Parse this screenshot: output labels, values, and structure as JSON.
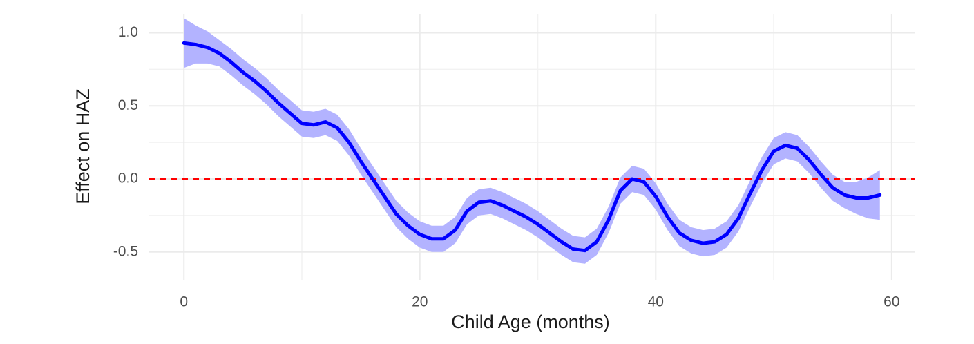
{
  "chart_data": {
    "type": "line",
    "x_label": "Child Age (months)",
    "y_label": "Effect on HAZ",
    "x": [
      0,
      1,
      2,
      3,
      4,
      5,
      6,
      7,
      8,
      9,
      10,
      11,
      12,
      13,
      14,
      15,
      16,
      17,
      18,
      19,
      20,
      21,
      22,
      23,
      24,
      25,
      26,
      27,
      28,
      29,
      30,
      31,
      32,
      33,
      34,
      35,
      36,
      37,
      38,
      39,
      40,
      41,
      42,
      43,
      44,
      45,
      46,
      47,
      48,
      49,
      50,
      51,
      52,
      53,
      54,
      55,
      56,
      57,
      58,
      59
    ],
    "series": [
      {
        "color": "#0000ff",
        "band_color": "#b3b3ff",
        "values": [
          0.93,
          0.92,
          0.9,
          0.86,
          0.8,
          0.73,
          0.67,
          0.6,
          0.52,
          0.45,
          0.38,
          0.37,
          0.39,
          0.35,
          0.25,
          0.12,
          0.0,
          -0.12,
          -0.24,
          -0.32,
          -0.38,
          -0.41,
          -0.41,
          -0.35,
          -0.22,
          -0.16,
          -0.15,
          -0.18,
          -0.22,
          -0.26,
          -0.31,
          -0.37,
          -0.43,
          -0.48,
          -0.49,
          -0.43,
          -0.28,
          -0.08,
          0.0,
          -0.02,
          -0.12,
          -0.26,
          -0.37,
          -0.42,
          -0.44,
          -0.43,
          -0.38,
          -0.27,
          -0.1,
          0.06,
          0.19,
          0.23,
          0.21,
          0.13,
          0.03,
          -0.06,
          -0.11,
          -0.13,
          -0.13,
          -0.11
        ],
        "lower": [
          0.76,
          0.79,
          0.79,
          0.77,
          0.71,
          0.64,
          0.58,
          0.51,
          0.43,
          0.36,
          0.29,
          0.28,
          0.3,
          0.26,
          0.16,
          0.03,
          -0.09,
          -0.21,
          -0.33,
          -0.41,
          -0.47,
          -0.5,
          -0.5,
          -0.44,
          -0.31,
          -0.25,
          -0.24,
          -0.27,
          -0.31,
          -0.35,
          -0.4,
          -0.46,
          -0.52,
          -0.57,
          -0.58,
          -0.52,
          -0.37,
          -0.17,
          -0.09,
          -0.11,
          -0.21,
          -0.35,
          -0.46,
          -0.51,
          -0.53,
          -0.52,
          -0.47,
          -0.36,
          -0.19,
          -0.03,
          0.1,
          0.14,
          0.12,
          0.04,
          -0.06,
          -0.15,
          -0.2,
          -0.24,
          -0.27,
          -0.28
        ],
        "upper": [
          1.1,
          1.05,
          1.01,
          0.95,
          0.89,
          0.82,
          0.76,
          0.69,
          0.61,
          0.54,
          0.47,
          0.46,
          0.48,
          0.44,
          0.34,
          0.21,
          0.09,
          -0.03,
          -0.15,
          -0.23,
          -0.29,
          -0.32,
          -0.32,
          -0.26,
          -0.13,
          -0.07,
          -0.06,
          -0.09,
          -0.13,
          -0.17,
          -0.22,
          -0.28,
          -0.34,
          -0.39,
          -0.4,
          -0.34,
          -0.19,
          0.01,
          0.09,
          0.07,
          -0.03,
          -0.17,
          -0.28,
          -0.33,
          -0.35,
          -0.34,
          -0.29,
          -0.18,
          -0.01,
          0.15,
          0.28,
          0.32,
          0.3,
          0.22,
          0.12,
          0.03,
          -0.02,
          -0.02,
          0.01,
          0.06
        ]
      }
    ],
    "reference_line": {
      "y": 0,
      "color": "#ff0000",
      "dashed": true
    },
    "xlim": [
      -3,
      62
    ],
    "ylim": [
      -0.69,
      1.13
    ],
    "xticks": [
      0,
      20,
      40,
      60
    ],
    "yticks": [
      -0.5,
      {
        "value": 0,
        "label": "0.0"
      },
      0.5,
      {
        "value": 1,
        "label": "1.0"
      }
    ],
    "x_minor_grid": [
      10,
      30,
      50
    ],
    "y_minor_grid": [
      -0.25,
      0.25,
      0.75
    ],
    "grid": true
  }
}
